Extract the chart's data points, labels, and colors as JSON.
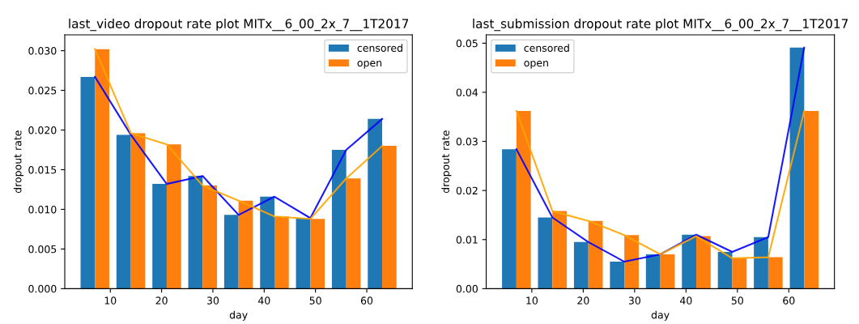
{
  "chart_data": [
    {
      "type": "bar",
      "title": "last_video dropout rate plot MITx__6_00_2x_7__1T2017",
      "xlabel": "day",
      "ylabel": "dropout rate",
      "x": [
        7,
        14,
        21,
        28,
        35,
        42,
        49,
        56,
        63
      ],
      "series": [
        {
          "name": "censored",
          "color": "#1f77b4",
          "values": [
            0.0267,
            0.0194,
            0.0132,
            0.0142,
            0.0093,
            0.0116,
            0.0089,
            0.0175,
            0.0214
          ]
        },
        {
          "name": "open",
          "color": "#ff7f0e",
          "values": [
            0.0302,
            0.0196,
            0.0182,
            0.013,
            0.0111,
            0.0091,
            0.0088,
            0.0139,
            0.018
          ]
        },
        {
          "type": "line",
          "color": "#0000ff",
          "values": [
            0.0267,
            0.0194,
            0.0132,
            0.0142,
            0.0093,
            0.0116,
            0.0089,
            0.0175,
            0.0214
          ]
        },
        {
          "type": "line",
          "color": "#ffa500",
          "values": [
            0.0302,
            0.0196,
            0.0182,
            0.013,
            0.0111,
            0.0091,
            0.0088,
            0.0139,
            0.018
          ]
        }
      ],
      "xlim": [
        1.12,
        68.88
      ],
      "xticks": [
        10,
        20,
        30,
        40,
        50,
        60
      ],
      "ylim": [
        0,
        0.032
      ],
      "yticks": [
        {
          "value": 0,
          "label": "0.000"
        },
        {
          "value": 0.005,
          "label": "0.005"
        },
        {
          "value": 0.01,
          "label": "0.010"
        },
        {
          "value": 0.015,
          "label": "0.015"
        },
        {
          "value": 0.02,
          "label": "0.020"
        },
        {
          "value": 0.025,
          "label": "0.025"
        },
        {
          "value": 0.03,
          "label": "0.030"
        }
      ],
      "legend": "top right"
    },
    {
      "type": "bar",
      "title": "last_submission dropout rate plot MITx__6_00_2x_7__1T2017",
      "xlabel": "day",
      "ylabel": "dropout rate",
      "x": [
        7,
        14,
        21,
        28,
        35,
        42,
        49,
        56,
        63
      ],
      "series": [
        {
          "name": "censored",
          "color": "#1f77b4",
          "values": [
            0.0284,
            0.0145,
            0.0095,
            0.0055,
            0.007,
            0.011,
            0.0075,
            0.0105,
            0.0491
          ]
        },
        {
          "name": "open",
          "color": "#ff7f0e",
          "values": [
            0.0362,
            0.0158,
            0.0138,
            0.0109,
            0.007,
            0.0107,
            0.0062,
            0.0064,
            0.0362
          ]
        },
        {
          "type": "line",
          "color": "#0000ff",
          "values": [
            0.0284,
            0.0145,
            0.0095,
            0.0055,
            0.007,
            0.011,
            0.0075,
            0.0105,
            0.0491
          ]
        },
        {
          "type": "line",
          "color": "#ffa500",
          "values": [
            0.0362,
            0.0158,
            0.0138,
            0.0109,
            0.007,
            0.0107,
            0.0062,
            0.0064,
            0.0362
          ]
        }
      ],
      "xlim": [
        1.12,
        68.88
      ],
      "xticks": [
        10,
        20,
        30,
        40,
        50,
        60
      ],
      "ylim": [
        0,
        0.0517
      ],
      "yticks": [
        {
          "value": 0,
          "label": "0.00"
        },
        {
          "value": 0.01,
          "label": "0.01"
        },
        {
          "value": 0.02,
          "label": "0.02"
        },
        {
          "value": 0.03,
          "label": "0.03"
        },
        {
          "value": 0.04,
          "label": "0.04"
        },
        {
          "value": 0.05,
          "label": "0.05"
        }
      ],
      "legend": "top left"
    }
  ]
}
